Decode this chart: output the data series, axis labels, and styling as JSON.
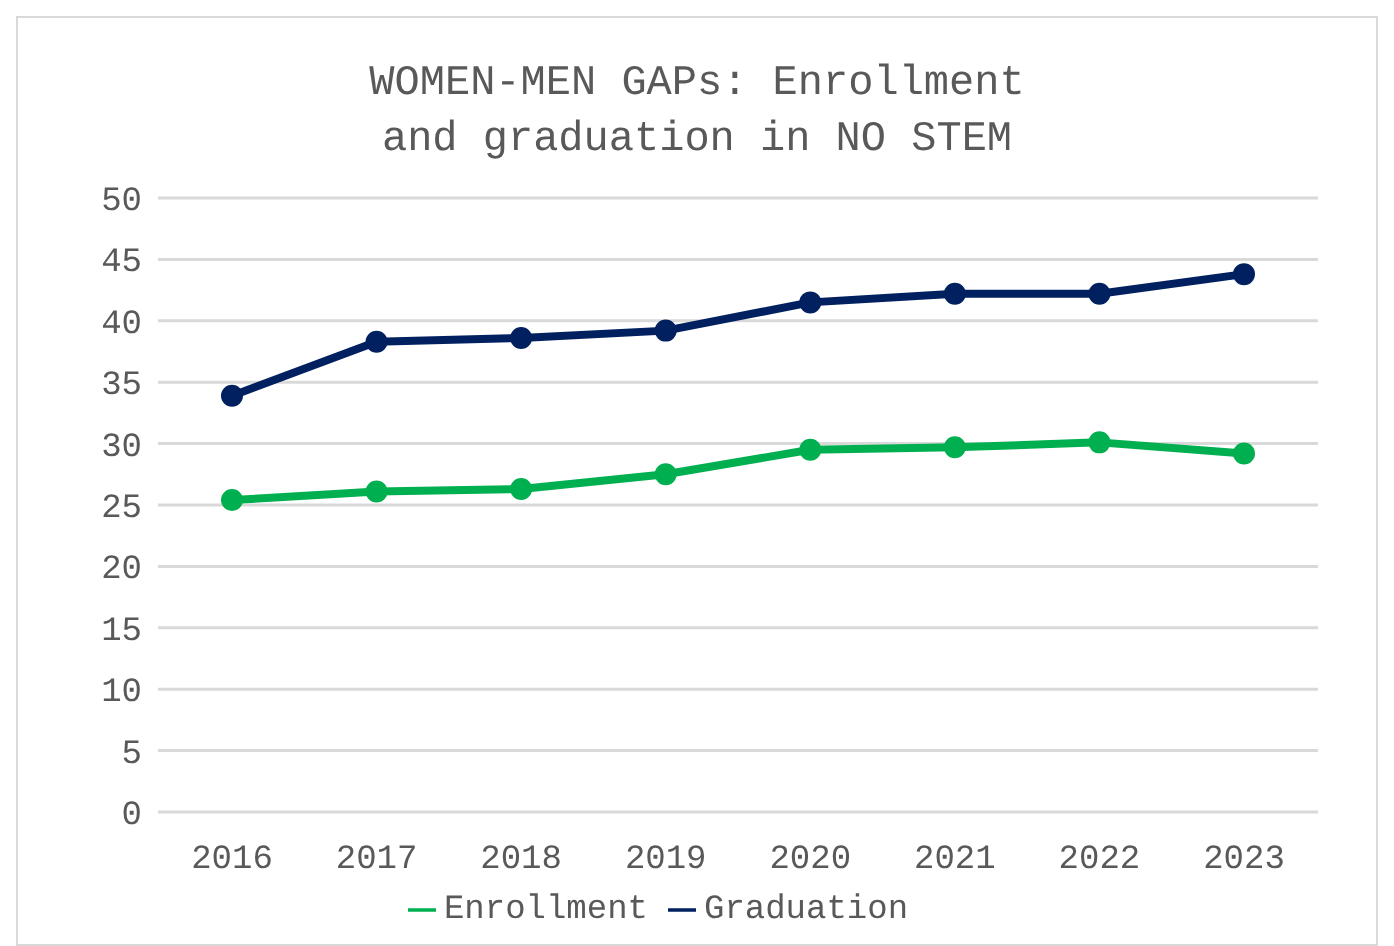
{
  "chart_data": {
    "type": "line",
    "title": "WOMEN-MEN GAPs: Enrollment and graduation in NO STEM",
    "categories": [
      "2016",
      "2017",
      "2018",
      "2019",
      "2020",
      "2021",
      "2022",
      "2023"
    ],
    "series": [
      {
        "name": "Enrollment",
        "color": "#00b050",
        "values": [
          25.4,
          26.1,
          26.3,
          27.5,
          29.5,
          29.7,
          30.1,
          29.2
        ]
      },
      {
        "name": "Graduation",
        "color": "#002060",
        "values": [
          33.9,
          38.3,
          38.6,
          39.2,
          41.5,
          42.2,
          42.2,
          43.8
        ]
      }
    ],
    "ylim": [
      0,
      50
    ],
    "yticks": [
      0,
      5,
      10,
      15,
      20,
      25,
      30,
      35,
      40,
      45,
      50
    ],
    "grid": "y",
    "legend": "bottom",
    "marker": "circle",
    "line_style": "solid"
  }
}
